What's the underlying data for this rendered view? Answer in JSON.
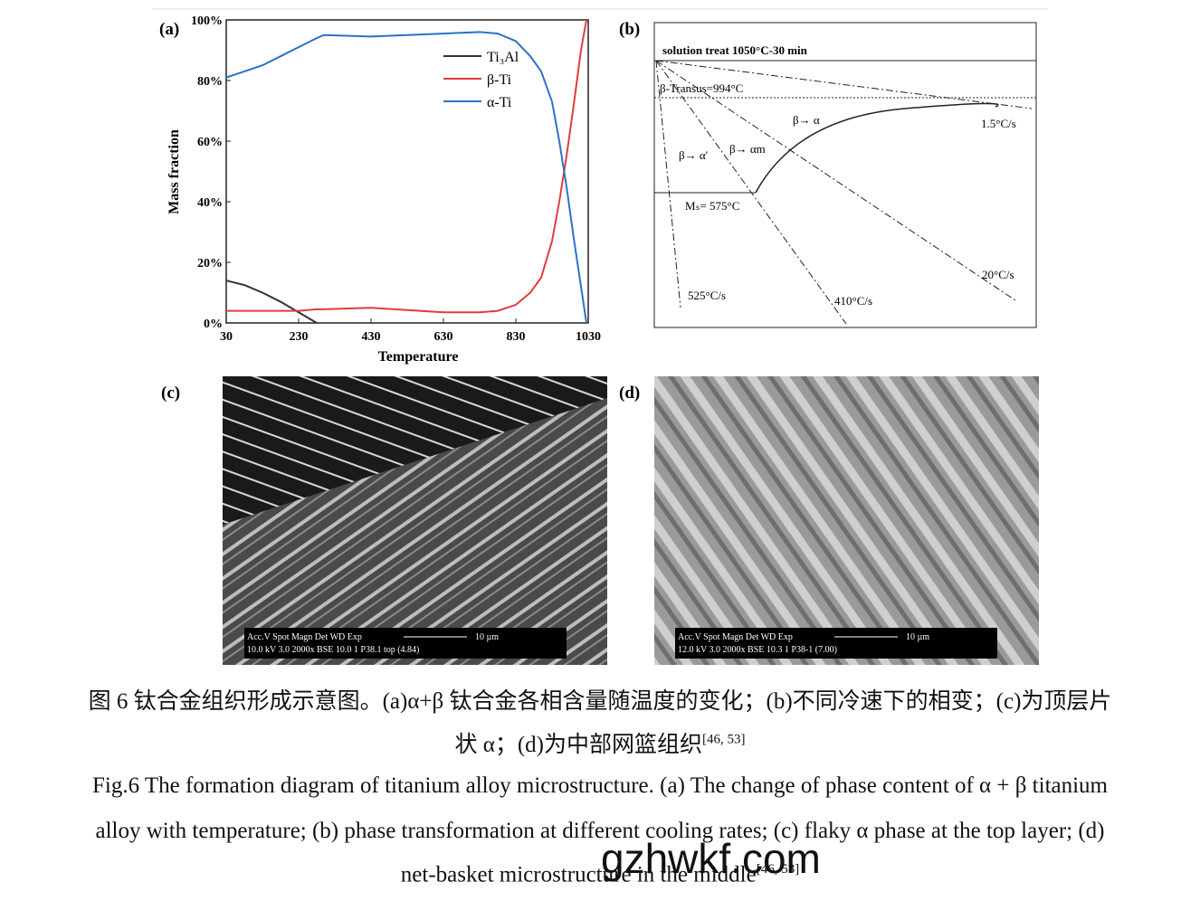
{
  "chart_data": {
    "type": "line",
    "panel": "(a)",
    "xlabel": "Temperature",
    "ylabel": "Mass fraction",
    "x": [
      30,
      80,
      130,
      180,
      230,
      280,
      300,
      430,
      630,
      730,
      780,
      830,
      870,
      900,
      930,
      950,
      970,
      990,
      1010,
      1025
    ],
    "series": [
      {
        "name": "Ti₃Al",
        "color": "#333333",
        "values": [
          14,
          12.5,
          10,
          7,
          3.5,
          0,
          null,
          null,
          null,
          null,
          null,
          null,
          null,
          null,
          null,
          null,
          null,
          null,
          null,
          null
        ]
      },
      {
        "name": "β-Ti",
        "color": "#e03c3c",
        "values": [
          4,
          4,
          4,
          4,
          4,
          4.5,
          4.5,
          5,
          3.5,
          3.5,
          4,
          6,
          10,
          15,
          27,
          40,
          55,
          72,
          90,
          100
        ]
      },
      {
        "name": "α-Ti",
        "color": "#2a72c8",
        "values": [
          81,
          83,
          85,
          88,
          91,
          94,
          95,
          94.5,
          95.5,
          96,
          95.5,
          93,
          88,
          83,
          73,
          60,
          45,
          28,
          12,
          0
        ]
      }
    ],
    "xlim": [
      30,
      1030
    ],
    "xticks": [
      30,
      230,
      430,
      630,
      830,
      1030
    ],
    "ylim": [
      0,
      100
    ],
    "yticks": [
      {
        "value": 0,
        "label": "0%"
      },
      {
        "value": 20,
        "label": "20%"
      },
      {
        "value": 40,
        "label": "40%"
      },
      {
        "value": 60,
        "label": "60%"
      },
      {
        "value": 80,
        "label": "80%"
      },
      {
        "value": 100,
        "label": "100%"
      }
    ]
  },
  "panel_b": {
    "label": "(b)",
    "solution": "solution treat 1050°C-30 min",
    "transus": "β-Transus=994°C",
    "ms": "Mₛ= 575°C",
    "b_a": "β→ α",
    "b_am": "β→ αm",
    "b_ap": "β→ α'",
    "r1": "1.5°C/s",
    "r2": "20°C/s",
    "r3": "410°C/s",
    "r4": "525°C/s"
  },
  "panel_c": {
    "label": "(c)",
    "bar1": "Acc.V  Spot Magn   Det  WD  Exp",
    "bar2": "10.0 kV 3.0   2000x   BSE 10.0  1     P38.1 top (4.84)",
    "scale": "10 µm"
  },
  "panel_d": {
    "label": "(d)",
    "bar1": "Acc.V  Spot Magn   Det  WD  Exp",
    "bar2": "12.0 kV 3.0   2000x   BSE 10.3  1     P38-1 (7.00)",
    "scale": "10 µm"
  },
  "caption_cn": {
    "lines": [
      "图 6  钛合金组织形成示意图。(a)α+β 钛合金各相含量随温度的变化；(b)不同冷速下的相变；(c)为顶层片",
      "状 α；(d)为中部网篮组织"
    ],
    "ref": "[46, 53]"
  },
  "caption_en": {
    "lines": [
      "Fig.6 The formation diagram of titanium alloy microstructure. (a) The change of phase content of α + β titanium",
      "alloy with temperature; (b) phase transformation at different cooling rates; (c) flaky α phase at the top layer; (d)",
      "net-basket microstructure in the middle"
    ],
    "ref": "[46, 53]"
  },
  "watermark": "gzhwkf.com"
}
